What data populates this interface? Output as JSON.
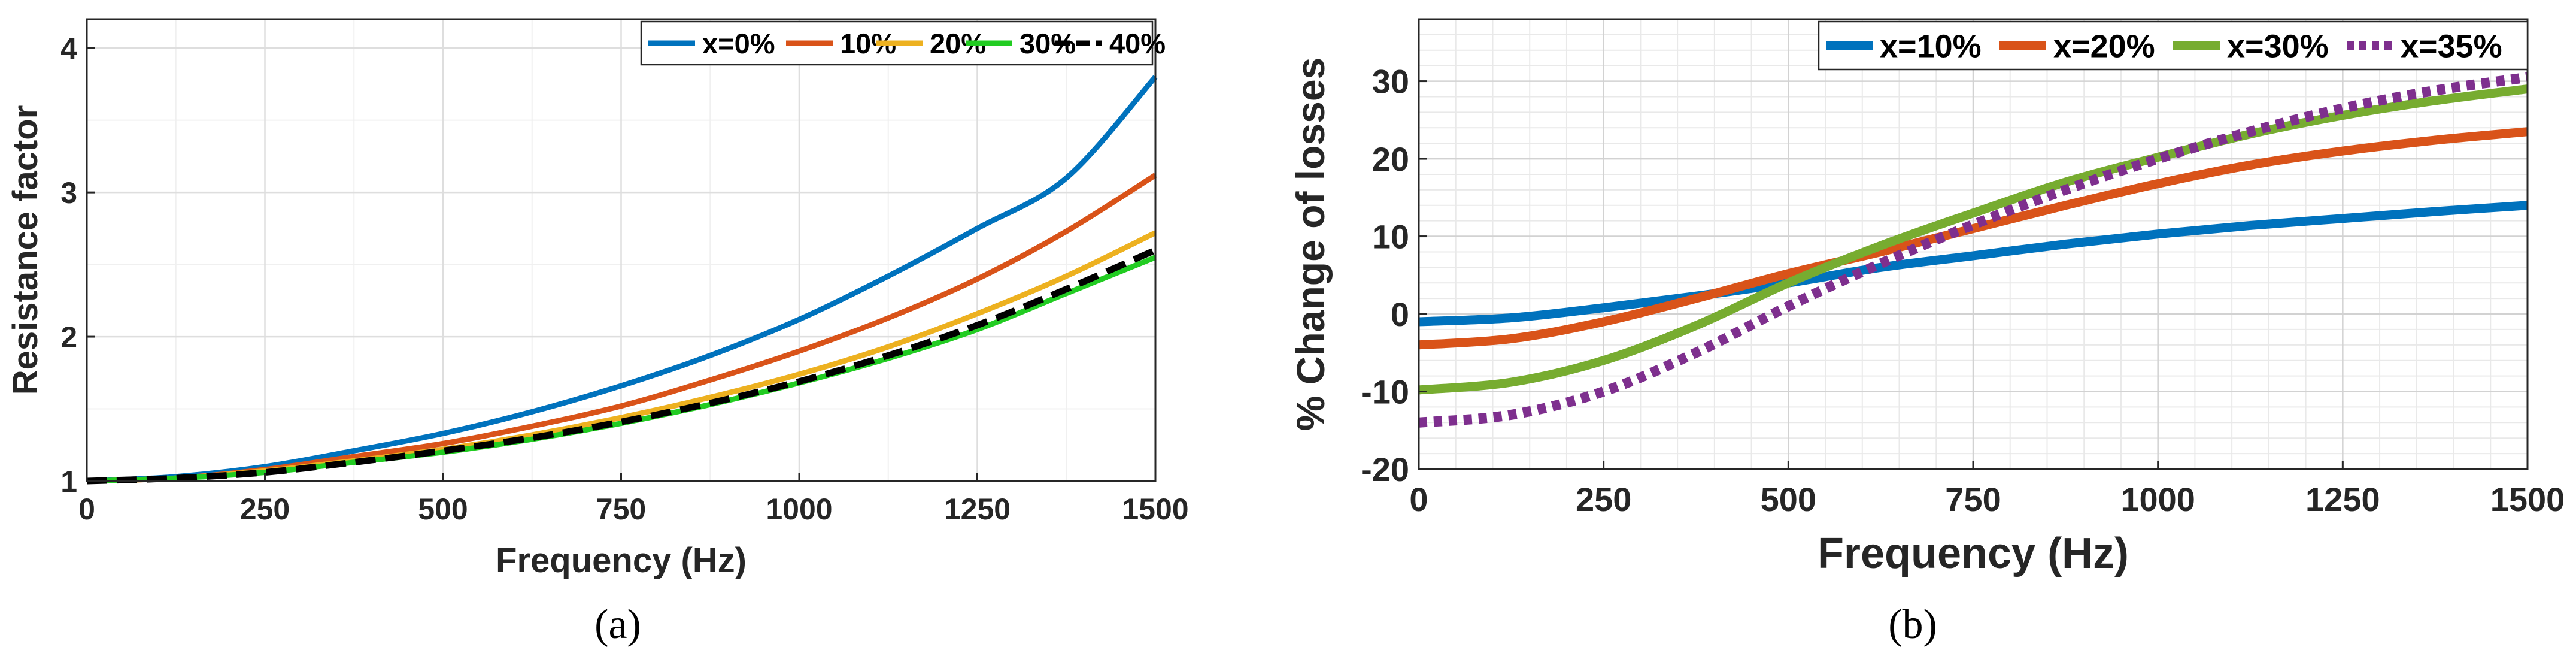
{
  "chart_data": [
    {
      "type": "line",
      "panel": "(a)",
      "caption": "(a)",
      "xlabel": "Frequency (Hz)",
      "ylabel": "Resistance factor",
      "xlim": [
        0,
        1500
      ],
      "ylim": [
        1,
        4.2
      ],
      "xticks": [
        0,
        250,
        500,
        750,
        1000,
        1250,
        1500
      ],
      "xtick_labels": [
        "0",
        "250",
        "500",
        "750",
        "1000",
        "1250",
        "1500"
      ],
      "yticks": [
        1,
        2,
        3,
        4
      ],
      "ytick_labels": [
        "1",
        "2",
        "3",
        "4"
      ],
      "grid": true,
      "legend_position": "top-right",
      "x": [
        0,
        125,
        250,
        375,
        500,
        625,
        750,
        875,
        1000,
        1125,
        1250,
        1375,
        1500
      ],
      "series": [
        {
          "name": "x=0%",
          "label": "x=0%",
          "color": "#0072BD",
          "style": "solid",
          "values": [
            1.0,
            1.03,
            1.1,
            1.21,
            1.33,
            1.48,
            1.66,
            1.87,
            2.12,
            2.42,
            2.75,
            3.1,
            3.8
          ]
        },
        {
          "name": "10%",
          "label": "10%",
          "color": "#D95319",
          "style": "solid",
          "values": [
            1.0,
            1.02,
            1.08,
            1.17,
            1.26,
            1.38,
            1.52,
            1.7,
            1.9,
            2.13,
            2.4,
            2.73,
            3.12
          ]
        },
        {
          "name": "20%",
          "label": "20%",
          "color": "#EDB120",
          "style": "solid",
          "values": [
            1.0,
            1.02,
            1.07,
            1.14,
            1.22,
            1.32,
            1.44,
            1.58,
            1.74,
            1.93,
            2.16,
            2.42,
            2.72
          ]
        },
        {
          "name": "30%",
          "label": "30%",
          "color": "#22CC22",
          "style": "solid",
          "values": [
            1.0,
            1.02,
            1.06,
            1.13,
            1.2,
            1.29,
            1.4,
            1.53,
            1.68,
            1.85,
            2.05,
            2.3,
            2.55
          ]
        },
        {
          "name": "40%",
          "label": "40%",
          "color": "#000000",
          "style": "dashed",
          "values": [
            1.0,
            1.02,
            1.06,
            1.13,
            1.21,
            1.3,
            1.41,
            1.54,
            1.69,
            1.87,
            2.08,
            2.33,
            2.6
          ]
        }
      ]
    },
    {
      "type": "line",
      "panel": "(b)",
      "caption": "(b)",
      "xlabel": "Frequency (Hz)",
      "ylabel": "% Change of losses",
      "xlim": [
        0,
        1500
      ],
      "ylim": [
        -20,
        38
      ],
      "xticks": [
        0,
        250,
        500,
        750,
        1000,
        1250,
        1500
      ],
      "xtick_labels": [
        "0",
        "250",
        "500",
        "750",
        "1000",
        "1250",
        "1500"
      ],
      "yticks": [
        -20,
        -10,
        0,
        10,
        20,
        30
      ],
      "ytick_labels": [
        "-20",
        "-10",
        "0",
        "10",
        "20",
        "30"
      ],
      "grid": true,
      "legend_position": "top-right",
      "x": [
        0,
        125,
        250,
        375,
        500,
        625,
        750,
        875,
        1000,
        1125,
        1250,
        1375,
        1500
      ],
      "series": [
        {
          "name": "x=10%",
          "label": "x=10%",
          "color": "#0072BD",
          "style": "solid",
          "values": [
            -1.0,
            -0.5,
            0.8,
            2.3,
            4.0,
            6.0,
            7.5,
            9.0,
            10.3,
            11.4,
            12.3,
            13.2,
            14.0
          ]
        },
        {
          "name": "x=20%",
          "label": "x=20%",
          "color": "#D95319",
          "style": "solid",
          "values": [
            -4.0,
            -3.2,
            -1.0,
            2.0,
            5.2,
            8.0,
            11.0,
            14.0,
            16.8,
            19.2,
            21.0,
            22.4,
            23.5
          ]
        },
        {
          "name": "x=30%",
          "label": "x=30%",
          "color": "#77AC30",
          "style": "solid",
          "values": [
            -9.8,
            -8.8,
            -6.0,
            -1.5,
            4.0,
            8.8,
            13.0,
            17.0,
            20.2,
            23.2,
            25.6,
            27.5,
            29.0
          ]
        },
        {
          "name": "x=35%",
          "label": "x=35%",
          "color": "#7E2F8E",
          "style": "dotted",
          "values": [
            -14.0,
            -13.0,
            -10.0,
            -5.0,
            1.0,
            6.5,
            11.5,
            16.0,
            20.0,
            23.5,
            26.5,
            28.8,
            30.5
          ]
        }
      ]
    }
  ]
}
